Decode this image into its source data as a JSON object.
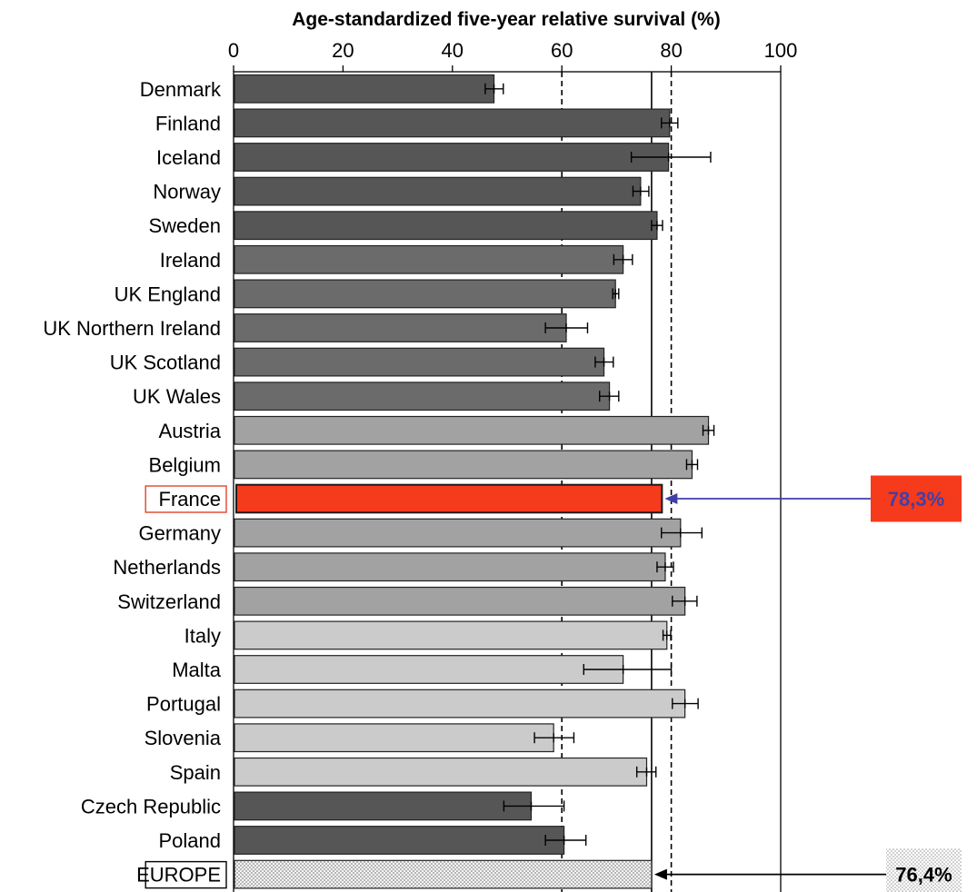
{
  "chart_data": {
    "type": "bar",
    "orientation": "horizontal",
    "title": "Age-standardized five-year relative survival (%)",
    "xlim": [
      0,
      100
    ],
    "xticks": [
      0,
      20,
      40,
      60,
      80,
      100
    ],
    "reference_lines": [
      60,
      80
    ],
    "reference_line_style": "dashed",
    "europe_line": 76.4,
    "categories": [
      "Denmark",
      "Finland",
      "Iceland",
      "Norway",
      "Sweden",
      "Ireland",
      "UK England",
      "UK Northern Ireland",
      "UK Scotland",
      "UK Wales",
      "Austria",
      "Belgium",
      "France",
      "Germany",
      "Netherlands",
      "Switzerland",
      "Italy",
      "Malta",
      "Portugal",
      "Slovenia",
      "Spain",
      "Czech Republic",
      "Poland",
      "EUROPE"
    ],
    "values": [
      47.6,
      79.7,
      79.5,
      74.4,
      77.4,
      71.2,
      69.8,
      60.8,
      67.7,
      68.7,
      86.8,
      83.8,
      78.3,
      81.7,
      78.9,
      82.5,
      79.2,
      71.2,
      82.5,
      58.5,
      75.5,
      54.4,
      60.4,
      76.4
    ],
    "error_low": [
      46.0,
      78.2,
      72.7,
      73.0,
      76.4,
      69.5,
      69.3,
      57.0,
      66.1,
      66.9,
      85.8,
      82.8,
      null,
      78.2,
      77.4,
      80.2,
      78.5,
      64.0,
      80.2,
      55.0,
      73.7,
      49.4,
      57.0,
      null
    ],
    "error_high": [
      49.3,
      81.2,
      87.2,
      75.9,
      78.4,
      72.9,
      70.4,
      64.7,
      69.4,
      70.4,
      87.8,
      84.8,
      null,
      85.6,
      80.4,
      84.7,
      79.9,
      80.0,
      84.9,
      62.2,
      77.2,
      60.4,
      64.4,
      null
    ],
    "groups": [
      "north",
      "north",
      "north",
      "north",
      "north",
      "uk",
      "uk",
      "uk",
      "uk",
      "uk",
      "central",
      "central",
      "highlight",
      "central",
      "central",
      "central",
      "south",
      "south",
      "south",
      "south",
      "south",
      "east",
      "east",
      "europe"
    ],
    "boxed_labels": [
      "France",
      "EUROPE"
    ],
    "callouts": [
      {
        "label": "78,3%",
        "target": "France"
      },
      {
        "label": "76,4%",
        "target": "EUROPE"
      }
    ]
  },
  "colors": {
    "north": "#565656",
    "uk": "#6b6b6b",
    "central": "#a2a2a2",
    "south": "#cbcbcb",
    "east": "#565656",
    "highlight": "#f63a1c",
    "europe": "#e6e6e6",
    "callout_fr_bg": "#f63a1c",
    "callout_fr_text": "#4040a8",
    "arrow_fr": "#3f3fa8",
    "boxed_fr": "#e0442a"
  }
}
